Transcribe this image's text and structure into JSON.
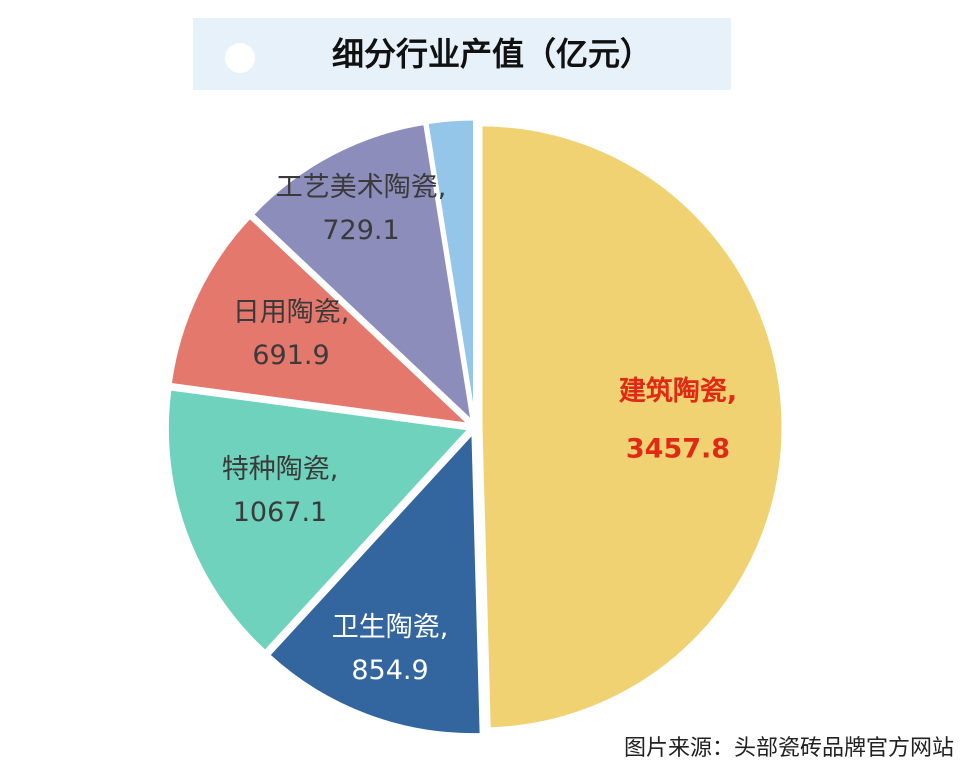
{
  "title": "细分行业产值（亿元）",
  "source": "图片来源：头部瓷砖品牌官方网站",
  "chart_data": {
    "type": "pie",
    "slices": [
      {
        "name": "建筑陶瓷",
        "value": 3457.8,
        "color": "#f0d272",
        "label_color": "#e02a16",
        "bold": true,
        "label_lines": [
          "建筑陶瓷,",
          "3457.8"
        ]
      },
      {
        "name": "卫生陶瓷",
        "value": 854.9,
        "color": "#33669e",
        "label_color": "#ffffff",
        "bold": false,
        "label_lines": [
          "卫生陶瓷,",
          "854.9"
        ]
      },
      {
        "name": "特种陶瓷",
        "value": 1067.1,
        "color": "#6fd2bc",
        "label_color": "#3a3a3a",
        "bold": false,
        "label_lines": [
          "特种陶瓷,",
          "1067.1"
        ]
      },
      {
        "name": "日用陶瓷",
        "value": 691.9,
        "color": "#e4786c",
        "label_color": "#3a3a3a",
        "bold": false,
        "label_lines": [
          "日用陶瓷,",
          "691.9"
        ]
      },
      {
        "name": "工艺美术陶瓷",
        "value": 729.1,
        "color": "#8c8dbb",
        "label_color": "#3a3a3a",
        "bold": false,
        "label_lines": [
          "工艺美术陶瓷,",
          "729.1"
        ]
      },
      {
        "name": "",
        "value": 175.5,
        "color": "#94c6e9",
        "label_color": "#3a3a3a",
        "bold": false,
        "label_lines": []
      }
    ]
  }
}
